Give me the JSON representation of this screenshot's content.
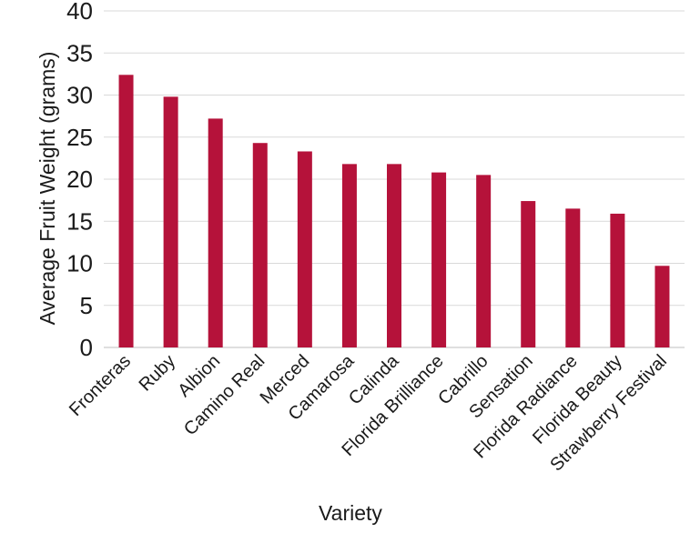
{
  "chart_data": {
    "type": "bar",
    "xlabel": "Variety",
    "ylabel": "Average Fruit Weight (grams)",
    "ylim": [
      0,
      40
    ],
    "yticks": [
      0,
      5,
      10,
      15,
      20,
      25,
      30,
      35,
      40
    ],
    "grid": true,
    "bar_color": "#b5123a",
    "categories": [
      "Fronteras",
      "Ruby",
      "Albion",
      "Camino Real",
      "Merced",
      "Camarosa",
      "Calinda",
      "Florida Brilliance",
      "Cabrillo",
      "Sensation",
      "Florida Radiance",
      "Florida Beauty",
      "Strawberry Festival"
    ],
    "values": [
      32.4,
      29.8,
      27.2,
      24.3,
      23.3,
      21.8,
      21.8,
      20.8,
      20.5,
      17.4,
      16.5,
      15.9,
      9.7
    ]
  }
}
